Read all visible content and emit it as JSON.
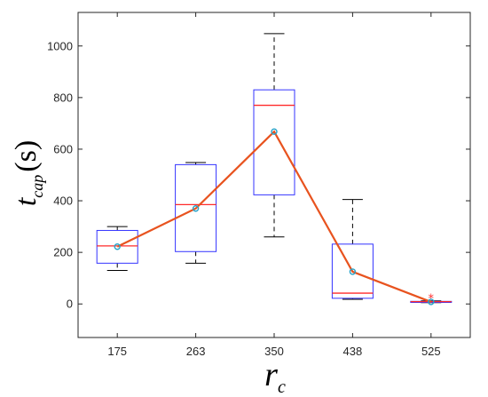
{
  "chart_data": {
    "type": "box",
    "categories": [
      "175",
      "263",
      "350",
      "438",
      "525"
    ],
    "boxes": [
      {
        "category": "175",
        "whisker_low": 130,
        "q1": 158,
        "median": 225,
        "q3": 285,
        "whisker_high": 300,
        "mean": 222
      },
      {
        "category": "263",
        "whisker_low": 158,
        "q1": 203,
        "median": 385,
        "q3": 540,
        "whisker_high": 548,
        "mean": 370
      },
      {
        "category": "350",
        "whisker_low": 260,
        "q1": 423,
        "median": 770,
        "q3": 830,
        "whisker_high": 1048,
        "mean": 668
      },
      {
        "category": "438",
        "whisker_low": 18,
        "q1": 22,
        "median": 42,
        "q3": 232,
        "whisker_high": 405,
        "mean": 125
      },
      {
        "category": "525",
        "whisker_low": 5,
        "q1": 6,
        "median": 9,
        "q3": 10,
        "whisker_high": 12,
        "mean": 8,
        "outliers": [
          24
        ]
      }
    ],
    "mean_line": {
      "values": [
        222,
        370,
        668,
        125,
        8
      ],
      "color": "#e8531f"
    },
    "ylim": [
      -130,
      1130
    ],
    "yticks": [
      0,
      200,
      400,
      600,
      800,
      1000
    ],
    "xlabel": {
      "main": "r",
      "sub": "c"
    },
    "ylabel": {
      "main": "t",
      "sub": "cap",
      "unit": "(s)"
    },
    "colors": {
      "box": "#3333ff",
      "median": "#ff2a2a",
      "whisker": "#000000",
      "mean_marker": "#27a3c9",
      "outlier": "#ff2a2a"
    }
  }
}
